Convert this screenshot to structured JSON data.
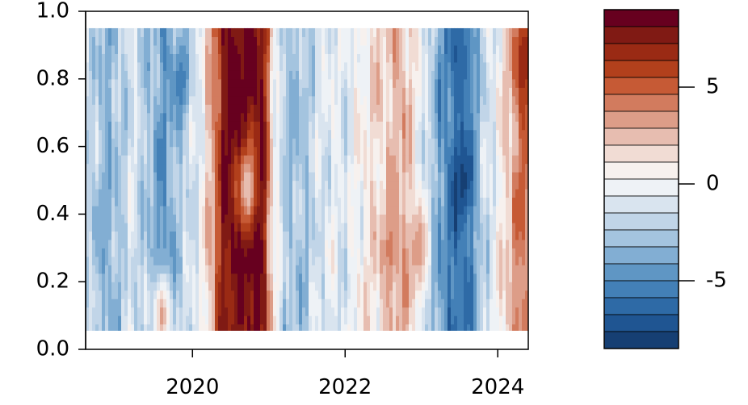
{
  "chart_data": {
    "type": "heatmap",
    "title": "",
    "xlabel": "",
    "ylabel": "",
    "x_range": [
      2018.6,
      2024.4
    ],
    "y_range": [
      0.05,
      0.95
    ],
    "xlim": [
      2018.6,
      2024.4
    ],
    "ylim": [
      0.0,
      1.0
    ],
    "x_ticks": [
      2020,
      2022,
      2024
    ],
    "x_tick_labels": [
      "2020",
      "2022",
      "2024"
    ],
    "y_ticks": [
      0.0,
      0.2,
      0.4,
      0.6,
      0.8,
      1.0
    ],
    "y_tick_labels": [
      "0.0",
      "0.2",
      "0.4",
      "0.6",
      "0.8",
      "1.0"
    ],
    "colorbar": {
      "range": [
        -8.5,
        9.0
      ],
      "ticks": [
        5,
        0,
        -5
      ],
      "tick_labels": [
        "5",
        "0",
        "-5"
      ],
      "levels": 20,
      "colors_top_to_bottom": [
        "#67001f",
        "#801a14",
        "#9a2a14",
        "#b2401c",
        "#c65a35",
        "#d27b5e",
        "#dd9d88",
        "#e7bdb0",
        "#f1dcd4",
        "#f7f1ee",
        "#eef2f6",
        "#d9e4ef",
        "#c1d5e8",
        "#a4c4df",
        "#82aed3",
        "#5f96c4",
        "#4380b7",
        "#2e6aa6",
        "#1f5592",
        "#163f73"
      ]
    },
    "time_profile": [
      {
        "x": 2018.6,
        "v": -1.0
      },
      {
        "x": 2018.75,
        "v": -2.5
      },
      {
        "x": 2018.9,
        "v": -3.5
      },
      {
        "x": 2019.05,
        "v": -2.5
      },
      {
        "x": 2019.2,
        "v": -1.0
      },
      {
        "x": 2019.35,
        "v": -2.0
      },
      {
        "x": 2019.5,
        "v": -3.5
      },
      {
        "x": 2019.65,
        "v": -4.5
      },
      {
        "x": 2019.8,
        "v": -2.5
      },
      {
        "x": 2019.95,
        "v": -1.5
      },
      {
        "x": 2020.1,
        "v": -0.5
      },
      {
        "x": 2020.25,
        "v": 3.0
      },
      {
        "x": 2020.4,
        "v": 7.5
      },
      {
        "x": 2020.55,
        "v": 8.5
      },
      {
        "x": 2020.7,
        "v": 8.0
      },
      {
        "x": 2020.85,
        "v": 8.5
      },
      {
        "x": 2020.95,
        "v": 7.0
      },
      {
        "x": 2021.05,
        "v": 1.0
      },
      {
        "x": 2021.2,
        "v": -2.0
      },
      {
        "x": 2021.4,
        "v": -3.0
      },
      {
        "x": 2021.6,
        "v": -1.5
      },
      {
        "x": 2021.8,
        "v": -0.5
      },
      {
        "x": 2022.0,
        "v": -1.0
      },
      {
        "x": 2022.2,
        "v": 0.5
      },
      {
        "x": 2022.4,
        "v": 1.5
      },
      {
        "x": 2022.6,
        "v": 2.0
      },
      {
        "x": 2022.75,
        "v": 3.0
      },
      {
        "x": 2022.9,
        "v": 1.0
      },
      {
        "x": 2023.05,
        "v": -1.0
      },
      {
        "x": 2023.2,
        "v": -3.5
      },
      {
        "x": 2023.35,
        "v": -5.5
      },
      {
        "x": 2023.5,
        "v": -6.0
      },
      {
        "x": 2023.65,
        "v": -4.5
      },
      {
        "x": 2023.8,
        "v": -2.0
      },
      {
        "x": 2023.95,
        "v": -0.5
      },
      {
        "x": 2024.1,
        "v": 1.5
      },
      {
        "x": 2024.25,
        "v": 4.0
      },
      {
        "x": 2024.4,
        "v": 5.0
      }
    ],
    "hotspots": [
      {
        "x": 2020.55,
        "y": 0.8,
        "v": 9.0
      },
      {
        "x": 2020.75,
        "y": 0.3,
        "v": 9.0
      },
      {
        "x": 2020.5,
        "y": 0.12,
        "v": 7.0
      },
      {
        "x": 2020.72,
        "y": 0.48,
        "v": 2.0
      },
      {
        "x": 2019.85,
        "y": 0.8,
        "v": -5.5
      },
      {
        "x": 2019.6,
        "y": 0.25,
        "v": -5.0
      },
      {
        "x": 2023.55,
        "y": 0.5,
        "v": -8.0
      },
      {
        "x": 2023.55,
        "y": 0.85,
        "v": -6.5
      },
      {
        "x": 2023.6,
        "y": 0.15,
        "v": -6.0
      },
      {
        "x": 2024.35,
        "y": 0.85,
        "v": 7.0
      },
      {
        "x": 2024.3,
        "y": 0.2,
        "v": 3.5
      },
      {
        "x": 2022.6,
        "y": 0.3,
        "v": 4.0
      },
      {
        "x": 2022.95,
        "y": 0.3,
        "v": 3.5
      },
      {
        "x": 2021.3,
        "y": 0.7,
        "v": -3.5
      },
      {
        "x": 2018.8,
        "y": 0.35,
        "v": -4.0
      },
      {
        "x": 2019.6,
        "y": 0.1,
        "v": 3.0
      }
    ]
  }
}
